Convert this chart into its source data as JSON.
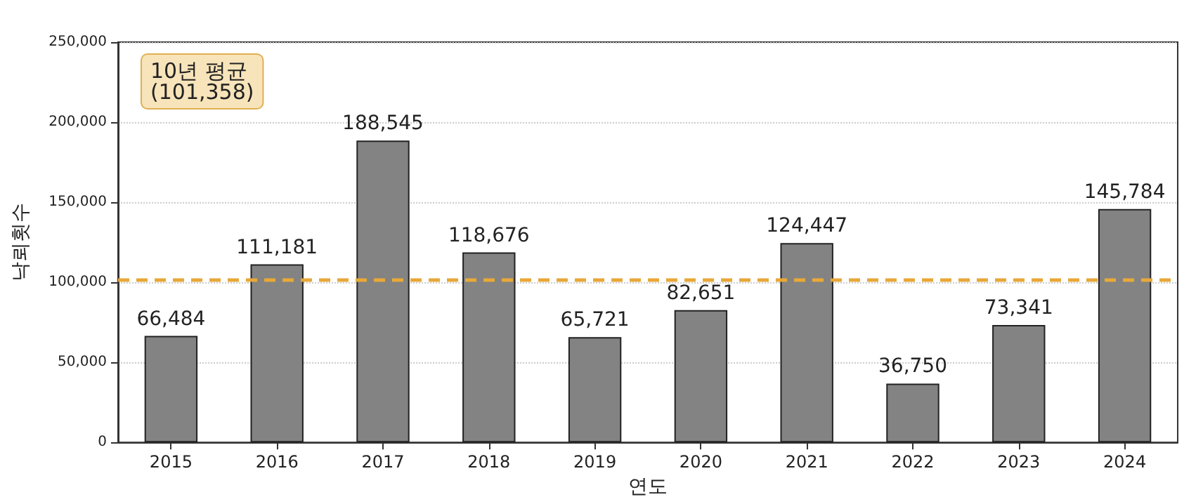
{
  "chart_data": {
    "type": "bar",
    "xlabel": "연도",
    "ylabel": "낙뢰횟수",
    "categories": [
      "2015",
      "2016",
      "2017",
      "2018",
      "2019",
      "2020",
      "2021",
      "2022",
      "2023",
      "2024"
    ],
    "values": [
      66484,
      111181,
      188545,
      118676,
      65721,
      82651,
      124447,
      36750,
      73341,
      145784
    ],
    "color": "#838383",
    "value_labels": [
      "66,484",
      "111,181",
      "188,545",
      "118,676",
      "65,721",
      "82,651",
      "124,447",
      "36,750",
      "73,341",
      "145,784"
    ],
    "annotations": [
      "10년 평균\n(101,358)"
    ],
    "ylim": [
      0,
      250000
    ],
    "yticks": [
      {
        "value": 0,
        "label": "0"
      },
      {
        "value": 50000,
        "label": "50,000"
      },
      {
        "value": 100000,
        "label": "100,000"
      },
      {
        "value": 150000,
        "label": "150,000"
      },
      {
        "value": 200000,
        "label": "200,000"
      },
      {
        "value": 250000,
        "label": "250,000"
      }
    ],
    "grid": "y",
    "ref_lines": [
      {
        "axis": "y",
        "value": 101358,
        "color": "#e8a838",
        "line_style": "dashed"
      }
    ]
  }
}
